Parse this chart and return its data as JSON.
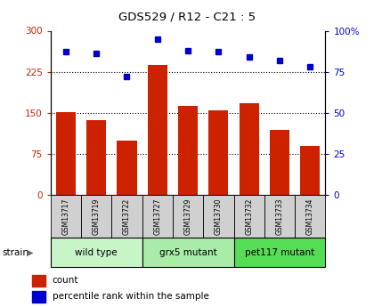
{
  "title": "GDS529 / R12 - C21 : 5",
  "samples": [
    "GSM13717",
    "GSM13719",
    "GSM13722",
    "GSM13727",
    "GSM13729",
    "GSM13730",
    "GSM13732",
    "GSM13733",
    "GSM13734"
  ],
  "counts": [
    152,
    137,
    100,
    238,
    162,
    155,
    168,
    118,
    90
  ],
  "percentiles": [
    87,
    86,
    72,
    95,
    88,
    87,
    84,
    82,
    78
  ],
  "bar_color": "#cc2200",
  "dot_color": "#0000cc",
  "ylim_left": [
    0,
    300
  ],
  "ylim_right": [
    0,
    100
  ],
  "yticks_left": [
    0,
    75,
    150,
    225,
    300
  ],
  "yticks_right": [
    0,
    25,
    50,
    75,
    100
  ],
  "ytick_labels_left": [
    "0",
    "75",
    "150",
    "225",
    "300"
  ],
  "ytick_labels_right": [
    "0",
    "25",
    "50",
    "75",
    "100%"
  ],
  "hlines": [
    75,
    150,
    225
  ],
  "groups": [
    {
      "label": "wild type",
      "start": 0,
      "end": 3,
      "color": "#c8f5c8"
    },
    {
      "label": "grx5 mutant",
      "start": 3,
      "end": 6,
      "color": "#a8eca8"
    },
    {
      "label": "pet117 mutant",
      "start": 6,
      "end": 9,
      "color": "#55dd55"
    }
  ],
  "strain_label": "strain",
  "legend_count_label": "count",
  "legend_pct_label": "percentile rank within the sample",
  "plot_bg": "#ffffff"
}
